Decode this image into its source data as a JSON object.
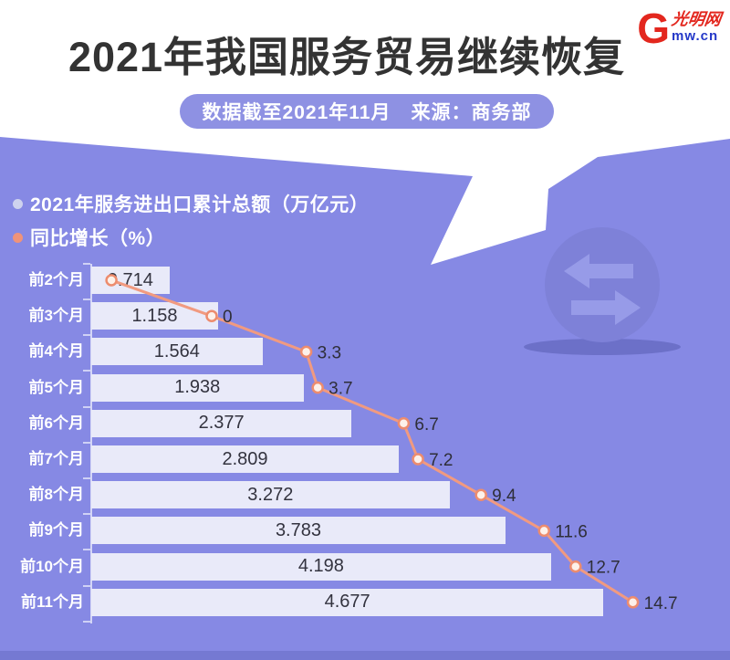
{
  "header": {
    "title": "2021年我国服务贸易继续恢复",
    "banner": "数据截至2021年11月　来源：商务部",
    "logo": {
      "letter": "G",
      "script": "光明网",
      "domain": "mw.cn"
    }
  },
  "legend": [
    {
      "label": "2021年服务进出口累计总额（万亿元）",
      "color": "#ced2ee"
    },
    {
      "label": "同比增长（%）",
      "color": "#f0937a"
    }
  ],
  "chart_data": {
    "type": "bar",
    "orientation": "horizontal",
    "title": "2021年我国服务贸易继续恢复",
    "subtitle": "数据截至2021年11月　来源：商务部",
    "categories": [
      "前2个月",
      "前3个月",
      "前4个月",
      "前5个月",
      "前6个月",
      "前7个月",
      "前8个月",
      "前9个月",
      "前10个月",
      "前11个月"
    ],
    "series": [
      {
        "name": "2021年服务进出口累计总额（万亿元）",
        "type": "bar",
        "values": [
          0.714,
          1.158,
          1.564,
          1.938,
          2.377,
          2.809,
          3.272,
          3.783,
          4.198,
          4.677
        ],
        "bar_labels": [
          "0.714",
          "1.158",
          "1.564",
          "1.938",
          "2.377",
          "2.809",
          "3.272",
          "3.783",
          "4.198",
          "4.677"
        ]
      },
      {
        "name": "同比增长（%）",
        "type": "line",
        "values": [
          -3.5,
          0,
          3.3,
          3.7,
          6.7,
          7.2,
          9.4,
          11.6,
          12.7,
          14.7
        ],
        "value_labels": [
          "",
          "0",
          "3.3",
          "3.7",
          "6.7",
          "7.2",
          "9.4",
          "11.6",
          "12.7",
          "14.7"
        ]
      }
    ],
    "bar_axis_range": [
      0,
      5
    ],
    "line_axis_range": [
      -4.2,
      18
    ],
    "grid": false,
    "legend_position": "top-left"
  },
  "colors": {
    "background_purple": "#8689e4",
    "footer_purple": "#7579d2",
    "bar_fill": "#e9eaf9",
    "bar_text": "#33333f",
    "line": "#f19a80",
    "marker_stroke": "#ed8c6e",
    "marker_fill": "#fdf1ea",
    "value_label": "#2e2e38",
    "title_text": "#333333",
    "banner_bg": "#8e91e3",
    "logo_red": "#e3271e",
    "logo_blue": "#2438c8",
    "deco_circle": "#7e81d8",
    "deco_arrow": "#979be8",
    "deco_shadow": "#6c70c8"
  },
  "icons": {
    "deco": "transfer-arrows-icon"
  }
}
